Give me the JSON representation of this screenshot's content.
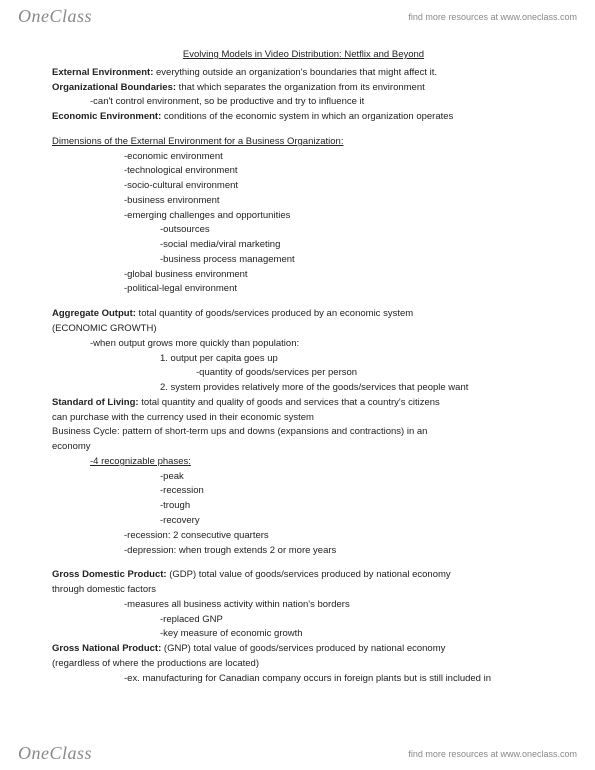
{
  "brand": {
    "logo": "OneClass",
    "tagline": "find more resources at www.oneclass.com"
  },
  "doc": {
    "title": "Evolving Models in Video Distribution: Netflix and Beyond",
    "lines": [
      {
        "cls": "line",
        "lead": "External Environment:",
        "text": " everything outside an organization's boundaries that might affect it."
      },
      {
        "cls": "line",
        "lead": "Organizational Boundaries:",
        "text": " that which separates the organization from its environment"
      },
      {
        "cls": "line i1",
        "text": "-can't control environment, so be productive and try to influence it"
      },
      {
        "cls": "line",
        "lead": "Economic Environment:",
        "text": " conditions of the economic system in which an organization operates"
      },
      {
        "cls": "gap"
      },
      {
        "cls": "line underline",
        "text": "Dimensions of the External Environment for a Business Organization:"
      },
      {
        "cls": "line i2",
        "text": "-economic environment"
      },
      {
        "cls": "line i2",
        "text": "-technological environment"
      },
      {
        "cls": "line i2",
        "text": "-socio-cultural environment"
      },
      {
        "cls": "line i2",
        "text": "-business environment"
      },
      {
        "cls": "line i2",
        "text": "-emerging challenges and opportunities"
      },
      {
        "cls": "line i3",
        "text": "-outsources"
      },
      {
        "cls": "line i3",
        "text": "-social media/viral marketing"
      },
      {
        "cls": "line i3",
        "text": "-business process management"
      },
      {
        "cls": "line i2",
        "text": "-global business environment"
      },
      {
        "cls": "line i2",
        "text": "-political-legal environment"
      },
      {
        "cls": "gap"
      },
      {
        "cls": "line",
        "lead": "Aggregate Output:",
        "text": " total quantity of goods/services produced by an economic system"
      },
      {
        "cls": "line",
        "text": "(ECONOMIC GROWTH)"
      },
      {
        "cls": "line i1",
        "text": "-when output grows more quickly than population:"
      },
      {
        "cls": "line i3",
        "text": "1. output per capita goes up"
      },
      {
        "cls": "line i4",
        "text": "-quantity of goods/services per person"
      },
      {
        "cls": "line i3",
        "text": "2. system provides relatively more of the goods/services that people want"
      },
      {
        "cls": "line",
        "lead": "Standard of Living:",
        "text": " total quantity and quality of goods and services that a country's citizens"
      },
      {
        "cls": "line",
        "text": "can purchase with the currency used in their economic system"
      },
      {
        "cls": "line",
        "text": "Business Cycle: pattern of short-term ups and downs (expansions and contractions) in an"
      },
      {
        "cls": "line",
        "text": "economy"
      },
      {
        "cls": "line i1 underline",
        "text": "-4 recognizable phases:"
      },
      {
        "cls": "line i3",
        "text": "-peak"
      },
      {
        "cls": "line i3",
        "text": "-recession"
      },
      {
        "cls": "line i3",
        "text": "-trough"
      },
      {
        "cls": "line i3",
        "text": "-recovery"
      },
      {
        "cls": "line i2",
        "text": "-recession: 2 consecutive quarters"
      },
      {
        "cls": "line i2",
        "text": "-depression: when trough extends 2 or more years"
      },
      {
        "cls": "gap"
      },
      {
        "cls": "line",
        "lead": "Gross Domestic Product:",
        "text": " (GDP) total value of goods/services produced by national economy"
      },
      {
        "cls": "line",
        "text": "through domestic factors"
      },
      {
        "cls": "line i2",
        "text": "-measures all business activity within nation's borders"
      },
      {
        "cls": "line i3",
        "text": "-replaced GNP"
      },
      {
        "cls": "line i3",
        "text": "-key measure of economic growth"
      },
      {
        "cls": "line",
        "lead": "Gross National Product:",
        "text": " (GNP) total value of goods/services produced by national economy"
      },
      {
        "cls": "line",
        "text": "(regardless of where the productions are located)"
      },
      {
        "cls": "line i2",
        "text": "-ex. manufacturing for Canadian company occurs in foreign plants but is still included in"
      }
    ]
  }
}
